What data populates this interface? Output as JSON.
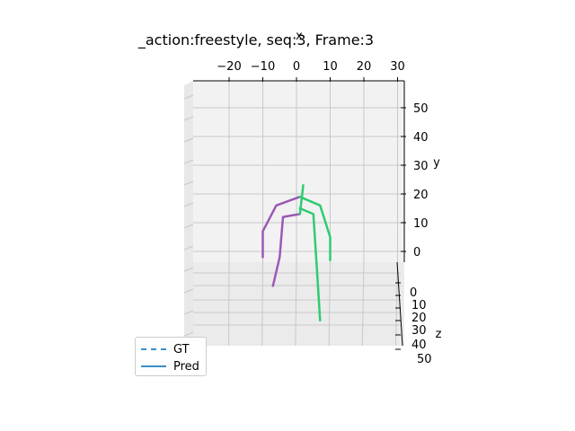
{
  "chart_data": {
    "type": "line",
    "projection": "3d",
    "title": "_action:freestyle, seq:3,   Frame:3",
    "xlabel": "x",
    "ylabel": "y",
    "zlabel": "z",
    "x_ticks": [
      "−20",
      "−10",
      "0",
      "10",
      "20",
      "30"
    ],
    "y_ticks": [
      "0",
      "10",
      "20",
      "30",
      "40",
      "50"
    ],
    "z_ticks": [
      "0",
      "10",
      "20",
      "30",
      "40",
      "50"
    ],
    "grid": true,
    "legend_position": "lower-left",
    "legend": [
      {
        "label": "GT",
        "style": "dashed",
        "color": "#3a8fc8"
      },
      {
        "label": "Pred",
        "style": "solid",
        "color": "#3a8fc8"
      }
    ],
    "series": [
      {
        "side": "left",
        "color": "#9b59b6",
        "segments": [
          [
            [
              -10,
              -2
            ],
            [
              -10,
              7
            ],
            [
              -6,
              16
            ],
            [
              1,
              19
            ]
          ],
          [
            [
              -7,
              -12
            ],
            [
              -5,
              -2
            ],
            [
              -4,
              12
            ],
            [
              1,
              13
            ]
          ]
        ]
      },
      {
        "side": "right",
        "color": "#2ecc71",
        "segments": [
          [
            [
              1,
              13
            ],
            [
              2,
              23
            ]
          ],
          [
            [
              1,
              19
            ],
            [
              7,
              16
            ],
            [
              10,
              5
            ],
            [
              10,
              -3
            ]
          ],
          [
            [
              1,
              15
            ],
            [
              5,
              13
            ],
            [
              6,
              -5
            ],
            [
              7,
              -24
            ]
          ]
        ]
      }
    ]
  }
}
